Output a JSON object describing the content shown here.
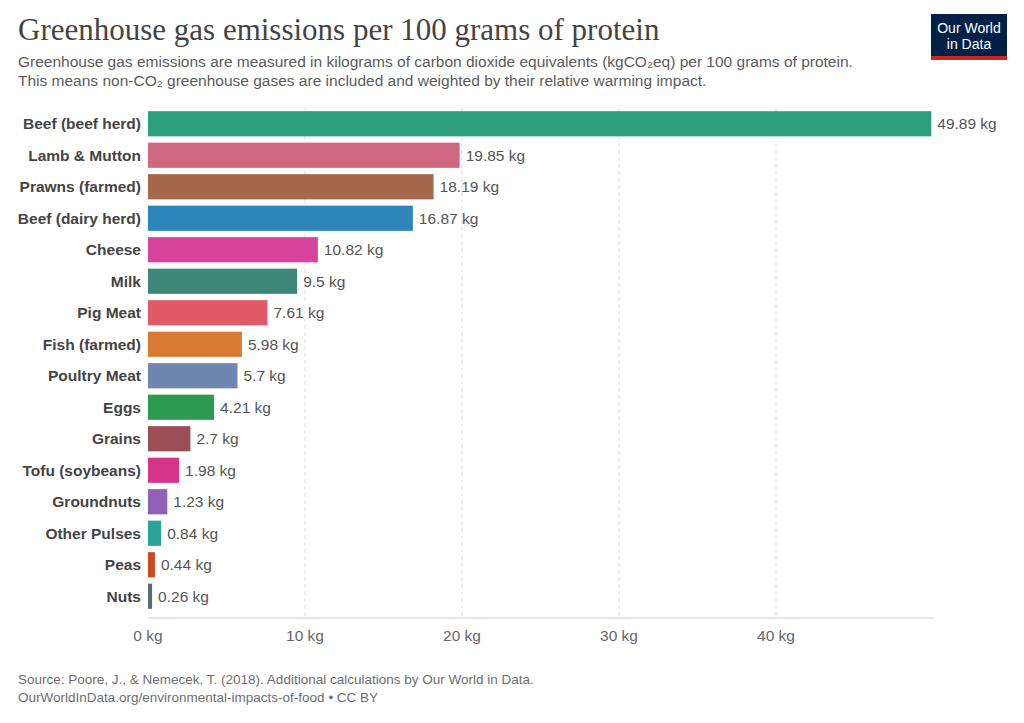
{
  "chart_data": {
    "type": "bar",
    "orientation": "horizontal",
    "title": "Greenhouse gas emissions per 100 grams of protein",
    "subtitle": "Greenhouse gas emissions are measured in kilograms of carbon dioxide equivalents (kgCO₂eq) per 100 grams of protein. This means non-CO₂ greenhouse gases are included and weighted by their relative warming impact.",
    "logo": [
      "Our World",
      "in Data"
    ],
    "source": "Source: Poore, J., & Nemecek, T. (2018). Additional calculations by Our World in Data.",
    "footer": "OurWorldInData.org/environmental-impacts-of-food • CC BY",
    "categories": [
      "Beef (beef herd)",
      "Lamb & Mutton",
      "Prawns (farmed)",
      "Beef (dairy herd)",
      "Cheese",
      "Milk",
      "Pig Meat",
      "Fish (farmed)",
      "Poultry Meat",
      "Eggs",
      "Grains",
      "Tofu (soybeans)",
      "Groundnuts",
      "Other Pulses",
      "Peas",
      "Nuts"
    ],
    "values": [
      49.89,
      19.85,
      18.19,
      16.87,
      10.82,
      9.5,
      7.61,
      5.98,
      5.7,
      4.21,
      2.7,
      1.98,
      1.23,
      0.84,
      0.44,
      0.26
    ],
    "value_labels": [
      "49.89 kg",
      "19.85 kg",
      "18.19 kg",
      "16.87 kg",
      "10.82 kg",
      "9.5 kg",
      "7.61 kg",
      "5.98 kg",
      "5.7 kg",
      "4.21 kg",
      "2.7 kg",
      "1.98 kg",
      "1.23 kg",
      "0.84 kg",
      "0.44 kg",
      "0.26 kg"
    ],
    "colors": [
      "#2e9f7c",
      "#d0687f",
      "#a6684a",
      "#2e86b8",
      "#d6449c",
      "#3e8877",
      "#e05a68",
      "#d97a34",
      "#6e86b0",
      "#2e9a4e",
      "#9b4e55",
      "#d6338a",
      "#8f62b8",
      "#2aa59a",
      "#c94a1e",
      "#5a6a74"
    ],
    "xlim": [
      0,
      50
    ],
    "xticks": [
      {
        "value": 0,
        "label": "0 kg"
      },
      {
        "value": 10,
        "label": "10 kg"
      },
      {
        "value": 20,
        "label": "20 kg"
      },
      {
        "value": 30,
        "label": "30 kg"
      },
      {
        "value": 40,
        "label": "40 kg"
      }
    ],
    "grid": true,
    "data_labels": true
  }
}
